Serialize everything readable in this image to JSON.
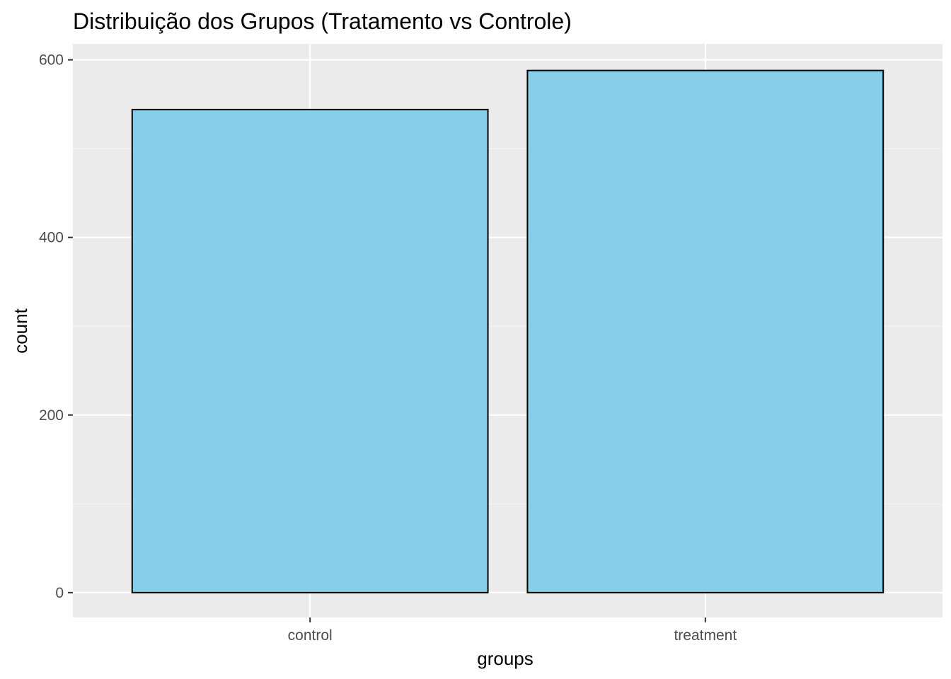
{
  "chart_data": {
    "type": "bar",
    "title": "Distribuição dos Grupos (Tratamento vs Controle)",
    "xlabel": "groups",
    "ylabel": "count",
    "categories": [
      "control",
      "treatment"
    ],
    "values": [
      544,
      588
    ],
    "ylim": [
      -28,
      618
    ],
    "yticks": [
      0,
      200,
      400,
      600
    ],
    "ytick_labels": [
      "0",
      "200",
      "400",
      "600"
    ],
    "grid": true,
    "legend": "none",
    "colors": {
      "bar_fill": "#87CEEB",
      "bar_stroke": "#000000",
      "panel_background": "#EBEBEB",
      "grid_major": "#FFFFFF",
      "grid_minor": "#F5F5F5",
      "tick_label": "#4D4D4D",
      "tick_mark": "#333333"
    }
  }
}
